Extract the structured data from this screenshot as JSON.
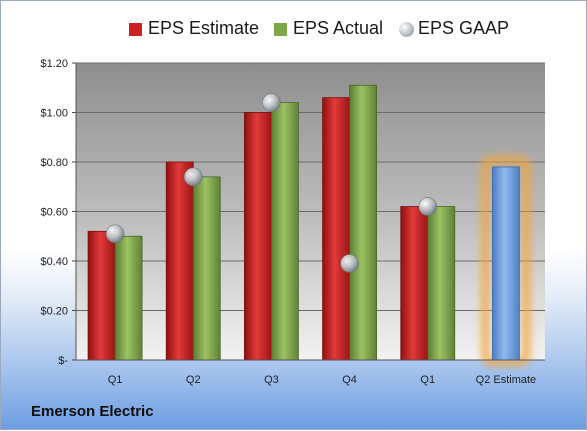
{
  "chart_data": {
    "type": "bar",
    "categories": [
      "Q1",
      "Q2",
      "Q3",
      "Q4",
      "Q1",
      "Q2 Estimate"
    ],
    "series": [
      {
        "name": "EPS Estimate",
        "kind": "bar",
        "color": "#cc2222",
        "values": [
          0.52,
          0.8,
          1.0,
          1.06,
          0.62,
          0.78
        ]
      },
      {
        "name": "EPS Actual",
        "kind": "bar",
        "color": "#7ea74a",
        "values": [
          0.5,
          0.74,
          1.04,
          1.11,
          0.62,
          null
        ]
      },
      {
        "name": "EPS GAAP",
        "kind": "marker",
        "color": "#b9c0c8",
        "values": [
          0.51,
          0.74,
          1.04,
          0.39,
          0.62,
          null
        ]
      }
    ],
    "highlight": {
      "category_index": 5,
      "bar_color": "#6fa0dc",
      "glow_color": "#f2a641"
    },
    "ylim": [
      0,
      1.2
    ],
    "yticks": [
      0,
      0.2,
      0.4,
      0.6,
      0.8,
      1.0,
      1.2
    ],
    "ytick_labels": [
      "$-",
      "$0.20",
      "$0.40",
      "$0.60",
      "$0.80",
      "$1.00",
      "$1.20"
    ],
    "legend_position": "top",
    "grid": true,
    "plot_background": "gray gradient"
  },
  "footer": {
    "company": "Emerson Electric"
  }
}
